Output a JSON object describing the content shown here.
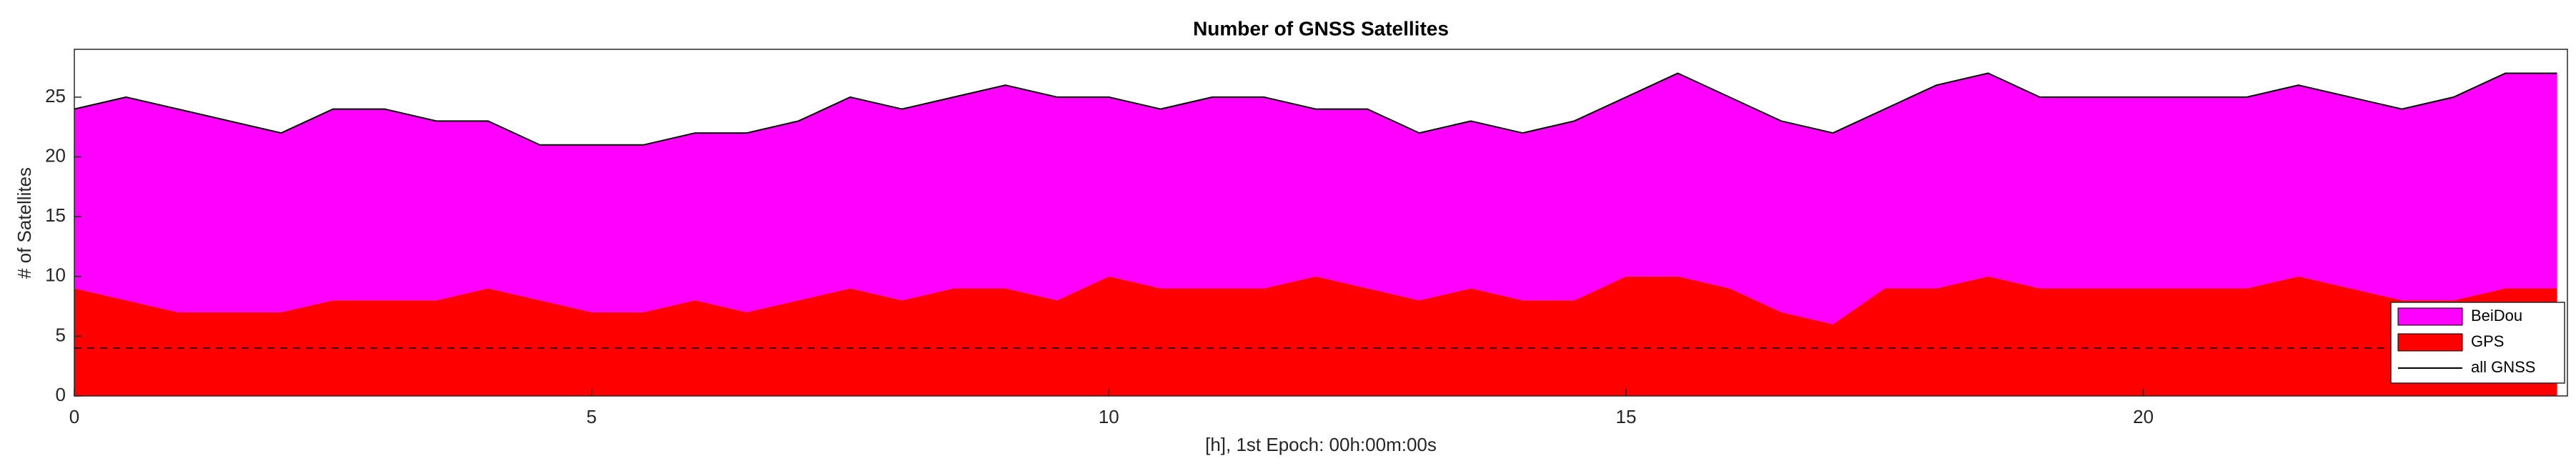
{
  "chart_data": {
    "type": "stacked-area",
    "title": "Number of GNSS Satellites",
    "x_label": "[h], 1st Epoch: 00h:00m:00s",
    "y_label": "# of Satellites",
    "x": [
      0,
      0.5,
      1,
      1.5,
      2,
      2.5,
      3,
      3.5,
      4,
      4.5,
      5,
      5.5,
      6,
      6.5,
      7,
      7.5,
      8,
      8.5,
      9,
      9.5,
      10,
      10.5,
      11,
      11.5,
      12,
      12.5,
      13,
      13.5,
      14,
      14.5,
      15,
      15.5,
      16,
      16.5,
      17,
      17.5,
      18,
      18.5,
      19,
      19.5,
      20,
      20.5,
      21,
      21.5,
      22,
      22.5,
      23,
      23.5,
      24
    ],
    "series": [
      {
        "name": "GPS",
        "color": "#ff0000",
        "values": [
          9,
          8,
          7,
          7,
          7,
          8,
          8,
          8,
          9,
          8,
          7,
          7,
          8,
          7,
          8,
          9,
          8,
          9,
          9,
          8,
          10,
          9,
          9,
          9,
          10,
          9,
          8,
          9,
          8,
          8,
          10,
          10,
          9,
          7,
          6,
          9,
          9,
          10,
          9,
          9,
          9,
          9,
          9,
          10,
          9,
          8,
          8,
          9,
          9
        ]
      },
      {
        "name": "BeiDou",
        "color": "#ff00ff",
        "values": [
          15,
          17,
          17,
          16,
          15,
          16,
          16,
          15,
          14,
          13,
          14,
          14,
          14,
          15,
          15,
          16,
          16,
          16,
          17,
          17,
          15,
          15,
          16,
          16,
          14,
          15,
          14,
          14,
          14,
          15,
          15,
          17,
          16,
          16,
          16,
          15,
          17,
          17,
          16,
          16,
          16,
          16,
          16,
          16,
          16,
          16,
          17,
          18,
          18
        ]
      },
      {
        "name": "all GNSS",
        "color": "#000000",
        "line": true,
        "values": [
          24,
          25,
          24,
          23,
          22,
          24,
          24,
          23,
          23,
          21,
          21,
          21,
          22,
          22,
          23,
          25,
          24,
          25,
          26,
          25,
          25,
          24,
          25,
          25,
          24,
          24,
          22,
          23,
          22,
          23,
          25,
          27,
          25,
          23,
          22,
          24,
          26,
          27,
          25,
          25,
          25,
          25,
          25,
          26,
          25,
          24,
          25,
          27,
          27
        ]
      }
    ],
    "threshold_line": 4,
    "xlim": [
      0,
      24.1
    ],
    "xticks": [
      0,
      5,
      10,
      15,
      20
    ],
    "ylim": [
      0,
      29
    ],
    "yticks": [
      0,
      5,
      10,
      15,
      20,
      25
    ],
    "legend": "southeast"
  }
}
